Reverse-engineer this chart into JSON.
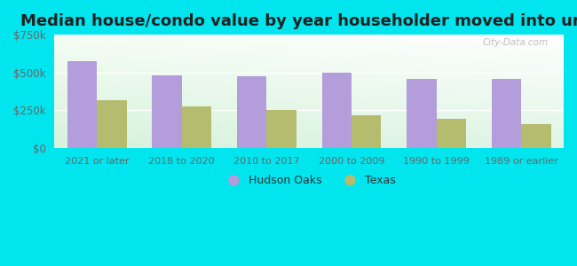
{
  "title": "Median house/condo value by year householder moved into unit",
  "categories": [
    "2021 or later",
    "2018 to 2020",
    "2010 to 2017",
    "2000 to 2009",
    "1990 to 1999",
    "1989 or earlier"
  ],
  "hudson_oaks": [
    575000,
    480000,
    475000,
    495000,
    455000,
    458000
  ],
  "texas": [
    318000,
    275000,
    252000,
    218000,
    192000,
    158000
  ],
  "hudson_oaks_color": "#b39ddb",
  "texas_color": "#b5bc6e",
  "background_outer": "#00e5ee",
  "ylim": [
    0,
    750000
  ],
  "yticks": [
    0,
    250000,
    500000,
    750000
  ],
  "ytick_labels": [
    "$0",
    "$250k",
    "$500k",
    "$750k"
  ],
  "legend_labels": [
    "Hudson Oaks",
    "Texas"
  ],
  "bar_width": 0.35,
  "title_fontsize": 13,
  "watermark_text": "City-Data.com",
  "grid_color": "#ffffff",
  "tick_color": "#666666"
}
